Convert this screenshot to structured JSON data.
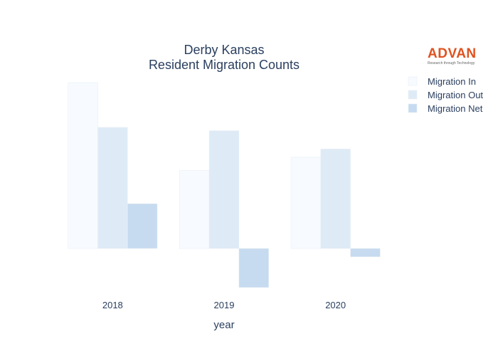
{
  "logo": {
    "name": "ADVAN",
    "tagline": "Research through Technology"
  },
  "chart_data": {
    "type": "bar",
    "title": [
      "Derby Kansas",
      "Resident Migration Counts"
    ],
    "xlabel": "year",
    "ylabel": "",
    "categories": [
      "2018",
      "2019",
      "2020"
    ],
    "series": [
      {
        "name": "Migration In",
        "color": "#f7fbff",
        "values": [
          1000,
          470,
          550
        ]
      },
      {
        "name": "Migration Out",
        "color": "#deebf7",
        "values": [
          730,
          710,
          600
        ]
      },
      {
        "name": "Migration Net",
        "color": "#c6dbef",
        "values": [
          270,
          -235,
          -50
        ]
      }
    ],
    "ylim": [
      -260,
      1000
    ],
    "grid": false,
    "legend": "top-right"
  }
}
